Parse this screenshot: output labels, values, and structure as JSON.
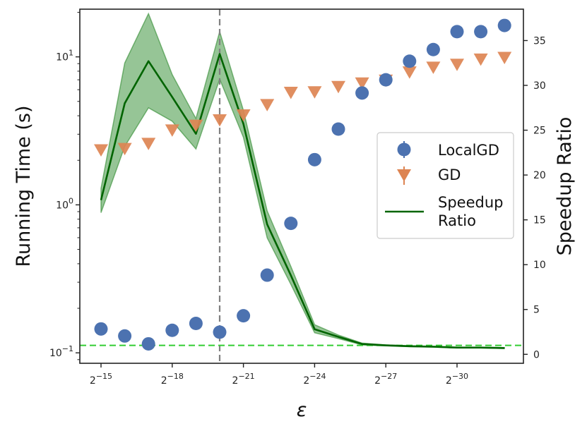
{
  "chart_data": {
    "type": "scatter",
    "xlabel": "ε",
    "ylabel_left": "Running Time (s)",
    "ylabel_right": "Speedup Ratio",
    "x_exponents": [
      -15,
      -16,
      -17,
      -18,
      -19,
      -20,
      -21,
      -22,
      -23,
      -24,
      -25,
      -26,
      -27,
      -28,
      -29,
      -30,
      -31,
      -32
    ],
    "x_ticks": [
      {
        "exp": -15,
        "base": "2",
        "sup": "−15"
      },
      {
        "exp": -18,
        "base": "2",
        "sup": "−18"
      },
      {
        "exp": -21,
        "base": "2",
        "sup": "−21"
      },
      {
        "exp": -24,
        "base": "2",
        "sup": "−24"
      },
      {
        "exp": -27,
        "base": "2",
        "sup": "−27"
      },
      {
        "exp": -30,
        "base": "2",
        "sup": "−30"
      }
    ],
    "y_left_ticks": [
      {
        "value": 0.1,
        "base": "10",
        "sup": "−1"
      },
      {
        "value": 1,
        "base": "10",
        "sup": "0"
      },
      {
        "value": 10,
        "base": "10",
        "sup": "1"
      }
    ],
    "y_left_range": [
      0.085,
      21
    ],
    "y_right_range": [
      -1,
      38.5
    ],
    "y_right_ticks": [
      0,
      5,
      10,
      15,
      20,
      25,
      30,
      35
    ],
    "vline_exponent": -20,
    "hline_speedup": 1,
    "colors": {
      "localgd": "#4c72b0",
      "gd": "#dd8452",
      "speedup": "#006400",
      "band": "#2e8b2e",
      "vline": "#808080",
      "hline": "#32cd32"
    },
    "series": [
      {
        "name": "LocalGD",
        "marker": "circle",
        "axis": "left",
        "values": [
          0.145,
          0.13,
          0.115,
          0.142,
          0.158,
          0.138,
          0.178,
          0.335,
          0.75,
          2.02,
          3.25,
          5.7,
          7.0,
          9.35,
          11.2,
          14.8,
          14.8,
          16.3
        ]
      },
      {
        "name": "GD",
        "marker": "triangle-down",
        "axis": "left",
        "values": [
          2.35,
          2.4,
          2.6,
          3.2,
          3.45,
          3.75,
          4.05,
          4.75,
          5.75,
          5.8,
          6.3,
          6.65,
          6.95,
          7.9,
          8.5,
          8.9,
          9.65,
          9.9
        ]
      },
      {
        "name": "Speedup\nRatio",
        "legend_lines": [
          "Speedup",
          "Ratio"
        ],
        "marker": "line",
        "axis": "right",
        "values": [
          17.2,
          28.0,
          32.7,
          28.7,
          24.6,
          33.5,
          25.7,
          14.5,
          8.8,
          2.8,
          1.95,
          1.15,
          1.0,
          0.9,
          0.85,
          0.75,
          0.75,
          0.7
        ],
        "band_upper": [
          18.5,
          32.5,
          38.0,
          31.2,
          26.3,
          36.0,
          27.2,
          16.0,
          9.8,
          3.3,
          2.15,
          1.25,
          1.05,
          0.95,
          0.9,
          0.8,
          0.8,
          0.75
        ],
        "band_lower": [
          15.8,
          23.2,
          27.5,
          26.0,
          22.9,
          30.7,
          24.2,
          13.0,
          7.8,
          2.4,
          1.75,
          1.05,
          0.95,
          0.85,
          0.8,
          0.7,
          0.7,
          0.65
        ]
      }
    ],
    "legend": {
      "position": "center-right",
      "entries": [
        "LocalGD",
        "GD",
        "Speedup Ratio"
      ]
    }
  }
}
